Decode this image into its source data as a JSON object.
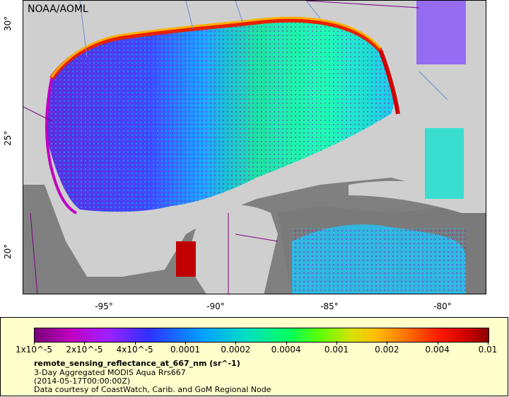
{
  "map": {
    "credit": "NOAA/AOML",
    "x_ticks": [
      "-95°",
      "-90°",
      "-85°",
      "-80°"
    ],
    "y_ticks": [
      "30°",
      "25°",
      "20°"
    ],
    "extent": {
      "lon": [
        -98,
        -78
      ],
      "lat": [
        18,
        31
      ]
    },
    "colors": {
      "land": "#cfcfcf",
      "no_data_ocean": "#808080",
      "coast_low": "#7a007a",
      "coast_high": "#8b0000"
    }
  },
  "legend": {
    "tick_labels": [
      "1x10^-5",
      "2x10^-5",
      "4x10^-5",
      "0.0001",
      "0.0002",
      "0.0004",
      "0.001",
      "0.002",
      "0.004",
      "0.01"
    ],
    "title": "remote_sensing_reflectance_at_667_nm (sr^-1)",
    "line1": "3-Day Aggregated MODIS Aqua Rrs667",
    "line2": "(2014-05-17T00:00:00Z)",
    "line3": "Data courtesy of CoastWatch, Carib. and GoM Regional Node",
    "background": "#ffffcc"
  }
}
